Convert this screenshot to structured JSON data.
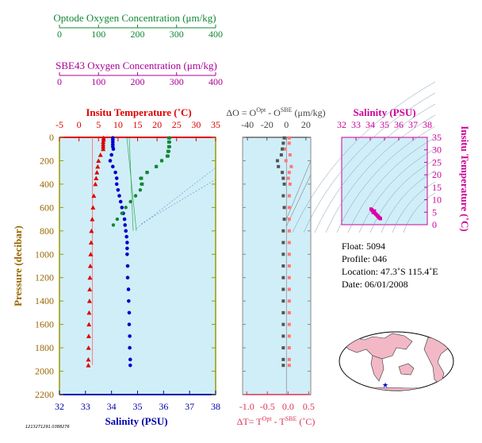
{
  "optode_axis": {
    "title": "Optode Oxygen Concentration (μm/kg)",
    "ticks": [
      "0",
      "100",
      "200",
      "300",
      "400"
    ],
    "color": "#118833"
  },
  "sbe_axis": {
    "title": "SBE43 Oxygen Concentration (μm/kg)",
    "ticks": [
      "0",
      "100",
      "200",
      "300",
      "400"
    ],
    "color": "#aa0099"
  },
  "temp_axis": {
    "title": "Insitu Temperature (˚C)",
    "ticks": [
      "-5",
      "0",
      "5",
      "10",
      "15",
      "20",
      "25",
      "30",
      "35"
    ],
    "color": "#dd0000"
  },
  "pressure_axis": {
    "title": "Pressure (decibar)",
    "ticks": [
      "0",
      "200",
      "400",
      "600",
      "800",
      "1000",
      "1200",
      "1400",
      "1600",
      "1800",
      "2000",
      "2200"
    ],
    "color": "#996600"
  },
  "salinity_axis": {
    "title": "Salinity (PSU)",
    "ticks": [
      "32",
      "33",
      "34",
      "35",
      "36",
      "37",
      "38"
    ],
    "color": "#0000aa"
  },
  "do_axis": {
    "title_prefix": "ΔO = O",
    "title_sup1": "Opt",
    "title_mid": " - O",
    "title_sup2": "SBE",
    "title_suffix": " (μm/kg)",
    "ticks": [
      "-40",
      "-20",
      "0",
      "20"
    ]
  },
  "dt_axis": {
    "title_prefix": "ΔT= T",
    "title_sup1": "Opt",
    "title_mid": " - T",
    "title_sup2": "SBE",
    "title_suffix": " (˚C)",
    "ticks": [
      "-1.0",
      "-0.5",
      "0.0",
      "0.5"
    ],
    "color": "#dd3355"
  },
  "ts_panel": {
    "top_title": "Salinity (PSU)",
    "top_ticks": [
      "32",
      "33",
      "34",
      "35",
      "36",
      "37",
      "38"
    ],
    "right_title": "Insitu Temperature (˚C)",
    "right_ticks": [
      "0",
      "5",
      "10",
      "15",
      "20",
      "25",
      "30",
      "35"
    ],
    "color": "#cc0099"
  },
  "info": {
    "float": "Float:  5094",
    "profile": "Profile:  046",
    "location": "Location:  47.3˚S  115.4˚E",
    "date": "Date:  06/01/2008"
  },
  "footer_id": "1213271291.0388276",
  "colors": {
    "panel_bg": "#d0eef8",
    "temperature": "#dd0000",
    "salinity": "#0000cc",
    "optode": "#118833",
    "sbe": "#228833",
    "delta_o": "#555555",
    "delta_t": "#ff7777"
  },
  "chart_data": [
    {
      "type": "scatter",
      "name": "profile",
      "ylabel": "Pressure (decibar)",
      "ylim": [
        2200,
        0
      ],
      "temperature": {
        "xlim": [
          -5,
          35
        ],
        "pressure": [
          5,
          20,
          40,
          60,
          80,
          100,
          150,
          200,
          250,
          300,
          350,
          400,
          500,
          600,
          700,
          800,
          900,
          1000,
          1100,
          1200,
          1300,
          1400,
          1500,
          1600,
          1700,
          1800,
          1900,
          1950
        ],
        "values": [
          6.3,
          6.3,
          6.2,
          6.2,
          6.2,
          6.2,
          5.5,
          5.0,
          4.8,
          4.6,
          4.4,
          4.2,
          3.8,
          3.6,
          3.4,
          3.2,
          3.1,
          3.0,
          2.9,
          2.8,
          2.75,
          2.7,
          2.6,
          2.55,
          2.5,
          2.45,
          2.4,
          2.4
        ]
      },
      "salinity": {
        "xlim": [
          32,
          38
        ],
        "pressure": [
          5,
          20,
          40,
          60,
          80,
          100,
          150,
          200,
          250,
          300,
          350,
          400,
          450,
          500,
          550,
          600,
          650,
          700,
          750,
          800,
          850,
          900,
          950,
          1000,
          1100,
          1200,
          1300,
          1400,
          1500,
          1600,
          1700,
          1800,
          1900,
          1950
        ],
        "values": [
          34.05,
          34.05,
          34.05,
          34.05,
          34.05,
          34.07,
          34.0,
          33.95,
          34.05,
          34.15,
          34.2,
          34.2,
          34.25,
          34.3,
          34.35,
          34.4,
          34.45,
          34.5,
          34.52,
          34.55,
          34.58,
          34.6,
          34.6,
          34.6,
          34.62,
          34.62,
          34.65,
          34.66,
          34.68,
          34.68,
          34.7,
          34.7,
          34.72,
          34.72
        ]
      },
      "optode": {
        "xlim": [
          0,
          400
        ],
        "pressure": [
          5,
          40,
          80,
          120,
          160,
          200,
          250,
          300,
          350,
          400,
          450,
          500,
          550,
          600,
          650,
          700,
          750
        ],
        "values": [
          282,
          282,
          282,
          280,
          278,
          262,
          248,
          225,
          208,
          210,
          207,
          195,
          182,
          170,
          160,
          148,
          138
        ]
      },
      "sbe43": {
        "xlim": [
          0,
          400
        ],
        "pressure": [
          5,
          40,
          80,
          120,
          160,
          200,
          250,
          300,
          350,
          400
        ],
        "values": [
          280,
          280,
          280,
          278,
          276,
          262,
          248,
          224,
          210,
          212
        ]
      }
    },
    {
      "type": "scatter",
      "name": "differences",
      "ylim": [
        2200,
        0
      ],
      "delta_o": {
        "xlim": [
          -45,
          25
        ],
        "pressure": [
          5,
          50,
          100,
          150,
          200,
          250,
          300,
          350,
          400,
          500,
          600,
          700,
          800,
          900,
          1000,
          1100,
          1200,
          1300,
          1400,
          1500,
          1600,
          1700,
          1800,
          1900,
          1950
        ],
        "values": [
          -1,
          -2,
          -3,
          -4,
          -8,
          -7,
          -3,
          -2,
          -1,
          -2,
          -1,
          -1,
          -2,
          -2,
          -2,
          -2,
          -2,
          -2,
          -2,
          -2,
          -2,
          -2,
          -2,
          -2,
          -2
        ]
      },
      "delta_t": {
        "xlim": [
          -1.1,
          0.55
        ],
        "pressure": [
          5,
          50,
          100,
          150,
          200,
          250,
          300,
          350,
          400,
          500,
          600,
          700,
          800,
          900,
          1000,
          1100,
          1200,
          1300,
          1400,
          1500,
          1600,
          1700,
          1800,
          1900,
          1950
        ],
        "values": [
          0.0,
          0.0,
          -0.1,
          0.02,
          -0.08,
          0.05,
          0.0,
          -0.02,
          0.02,
          0.0,
          0.0,
          0.0,
          0.0,
          0.0,
          0.0,
          0.0,
          0.0,
          0.0,
          0.0,
          0.0,
          0.0,
          0.0,
          0.0,
          0.0,
          0.0
        ]
      }
    },
    {
      "type": "scatter",
      "name": "t-s diagram",
      "xlabel": "Salinity (PSU)",
      "ylabel": "Insitu Temperature (˚C)",
      "xlim": [
        32,
        38
      ],
      "ylim": [
        0,
        35
      ],
      "x": [
        34.05,
        34.1,
        34.15,
        34.2,
        34.25,
        34.3,
        34.35,
        34.4,
        34.45,
        34.5,
        34.55,
        34.6,
        34.62,
        34.65,
        34.68,
        34.7,
        34.72,
        34.3,
        34.2,
        34.1
      ],
      "y": [
        6.3,
        6.0,
        5.7,
        5.4,
        5.1,
        4.8,
        4.5,
        4.2,
        3.9,
        3.6,
        3.3,
        3.0,
        2.9,
        2.7,
        2.6,
        2.5,
        2.4,
        5.5,
        4.9,
        6.0
      ]
    }
  ]
}
